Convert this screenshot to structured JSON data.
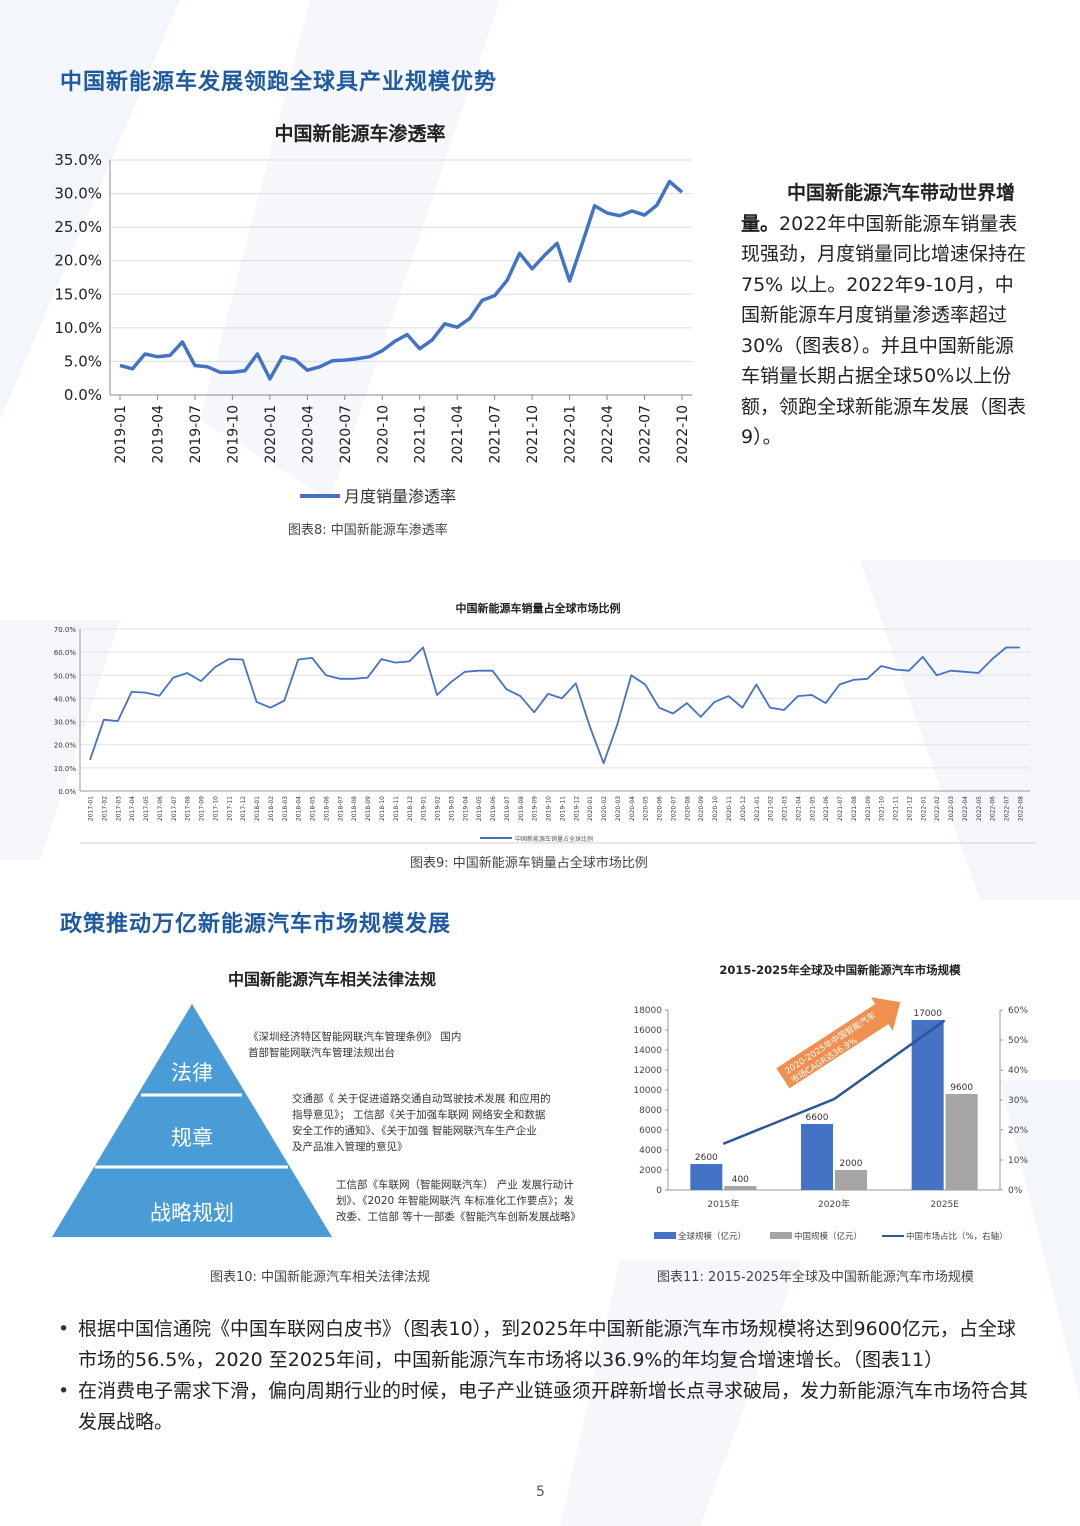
{
  "section1": {
    "title": "中国新能源车发展领跑全球具产业规模优势"
  },
  "chart8": {
    "title": "中国新能源车渗透率",
    "legend": "月度销量渗透率",
    "caption": "图表8:  中国新能源车渗透率",
    "color": "#4472c4"
  },
  "side": {
    "bold": "中国新能源汽车带动世界增量。",
    "text": "2022年中国新能源车销量表现强劲，月度销量同比增速保持在75% 以上。2022年9-10月，中国新能源车月度销量渗透率超过30%（图表8）。并且中国新能源车销量长期占据全球50%以上份额，领跑全球新能源车发展（图表9）。"
  },
  "chart9": {
    "title": "中国新能源车销量占全球市场比例",
    "legend": "中国新能源车销量占全球比例",
    "caption": "图表9:  中国新能源车销量占全球市场比例",
    "color": "#4472c4"
  },
  "section2": {
    "title": "政策推动万亿新能源汽车市场规模发展"
  },
  "pyramid": {
    "title": "中国新能源汽车相关法律法规",
    "levels": [
      "法律",
      "规章",
      "战略规划"
    ],
    "notes": [
      [
        "《深圳经济特区智能网联汽车管理条例》 国内",
        "首部智能网联汽车管理法规出台"
      ],
      [
        "交通部《 关于促进道路交通自动驾驶技术发展 和应用的",
        "指导意见》； 工信部《关于加强车联网 网络安全和数据",
        "安全工作的通知》、《关于加强 智能网联汽车生产企业",
        "及产品准入管理的意见》"
      ],
      [
        "工信部《车联网（智能网联汽车） 产业 发展行动计",
        "划》、《2020 年智能网联汽 车标准化工作要点》；发",
        "改委、工信部 等十一部委《智能汽车创新发展战略》"
      ]
    ],
    "caption": "图表10:  中国新能源汽车相关法律法规",
    "color": "#4a9cd6"
  },
  "chart11": {
    "title": "2015-2025年全球及中国新能源汽车市场规模",
    "annotation": [
      "2020-2025年中国智能汽车",
      "市场CAGR达36.9%"
    ],
    "legend": [
      "全球规模（亿元）",
      "中国规模（亿元）",
      "中国市场占比（%，右轴）"
    ],
    "caption": "图表11:  2015-2025年全球及中国新能源汽车市场规模",
    "colors": {
      "global": "#4472c4",
      "china": "#a5a5a5",
      "line": "#2f5597",
      "arrow": "#ed7d31"
    }
  },
  "bullets": [
    "根据中国信通院《中国车联网白皮书》（图表10），到2025年中国新能源汽车市场规模将达到9600亿元，占全球市场的56.5%，2020  至2025年间，中国新能源汽车市场将以36.9%的年均复合增速增长。（图表11）",
    "在消费电子需求下滑，偏向周期行业的时候，电子产业链亟须开辟新增长点寻求破局，发力新能源汽车市场符合其发展战略。"
  ],
  "page_number": "5",
  "chart_data": [
    {
      "type": "line",
      "title": "中国新能源车渗透率",
      "x_tick_labels": [
        "2019-01",
        "2019-04",
        "2019-07",
        "2019-10",
        "2020-01",
        "2020-04",
        "2020-07",
        "2020-10",
        "2021-01",
        "2021-04",
        "2021-07",
        "2021-10",
        "2022-01",
        "2022-04",
        "2022-07",
        "2022-10"
      ],
      "y_tick_labels": [
        "0.0%",
        "5.0%",
        "10.0%",
        "15.0%",
        "20.0%",
        "25.0%",
        "30.0%",
        "35.0%"
      ],
      "ylim": [
        0,
        35
      ],
      "series": [
        {
          "name": "月度销量渗透率",
          "values": [
            4.4,
            3.9,
            6.1,
            5.7,
            5.9,
            7.9,
            4.4,
            4.2,
            3.4,
            3.4,
            3.6,
            6.1,
            2.4,
            5.7,
            5.3,
            3.7,
            4.2,
            5.1,
            5.2,
            5.4,
            5.7,
            6.6,
            8.0,
            9.0,
            6.9,
            8.2,
            10.6,
            10.1,
            11.4,
            14.1,
            14.8,
            17.1,
            21.1,
            18.8,
            20.8,
            22.6,
            17.0,
            22.5,
            28.2,
            27.1,
            26.7,
            27.4,
            26.8,
            28.3,
            31.8,
            30.2
          ]
        }
      ]
    },
    {
      "type": "line",
      "title": "中国新能源车销量占全球市场比例",
      "x_tick_labels": [
        "2017-01",
        "2017-02",
        "2017-03",
        "2017-04",
        "2017-05",
        "2017-06",
        "2017-07",
        "2017-08",
        "2017-09",
        "2017-10",
        "2017-11",
        "2017-12",
        "2018-01",
        "2018-02",
        "2018-03",
        "2018-04",
        "2018-05",
        "2018-06",
        "2018-07",
        "2018-08",
        "2018-09",
        "2018-10",
        "2018-11",
        "2018-12",
        "2019-01",
        "2019-02",
        "2019-03",
        "2019-04",
        "2019-05",
        "2019-06",
        "2019-07",
        "2019-08",
        "2019-09",
        "2019-10",
        "2019-11",
        "2019-12",
        "2020-01",
        "2020-02",
        "2020-03",
        "2020-04",
        "2020-05",
        "2020-06",
        "2020-07",
        "2020-08",
        "2020-09",
        "2020-10",
        "2020-11",
        "2020-12",
        "2021-01",
        "2021-02",
        "2021-03",
        "2021-04",
        "2021-05",
        "2021-06",
        "2021-07",
        "2021-08",
        "2021-09",
        "2021-10",
        "2021-11",
        "2021-12",
        "2022-01",
        "2022-02",
        "2022-03",
        "2022-04",
        "2022-05",
        "2022-06",
        "2022-07",
        "2022-08"
      ],
      "y_tick_labels": [
        "0.0%",
        "10.0%",
        "20.0%",
        "30.0%",
        "40.0%",
        "50.0%",
        "60.0%",
        "70.0%"
      ],
      "ylim": [
        0,
        70
      ],
      "series": [
        {
          "name": "中国新能源车销量占全球比例",
          "values": [
            13.5,
            30.8,
            30.2,
            42.8,
            42.5,
            41.2,
            49,
            51,
            47.5,
            53.5,
            57,
            56.8,
            38.5,
            36,
            39,
            56.8,
            57.5,
            50,
            48.5,
            48.5,
            49,
            57,
            55.5,
            56,
            62,
            41.5,
            47,
            51.5,
            52,
            52,
            44,
            41,
            34,
            42,
            40,
            46.5,
            28,
            12,
            29,
            50,
            46,
            36,
            33.5,
            38,
            32,
            38.5,
            41,
            36,
            46,
            36,
            35,
            41,
            41.5,
            38,
            46,
            48,
            48.5,
            54,
            52.5,
            52,
            58,
            50,
            52,
            51.5,
            51,
            57,
            62,
            62
          ]
        }
      ]
    },
    {
      "type": "bar",
      "title": "2015-2025年全球及中国新能源汽车市场规模",
      "categories": [
        "2015年",
        "2020年",
        "2025E"
      ],
      "y_tick_labels": [
        "0",
        "2000",
        "4000",
        "6000",
        "8000",
        "10000",
        "12000",
        "14000",
        "16000",
        "18000"
      ],
      "y2_tick_labels": [
        "0%",
        "10%",
        "20%",
        "30%",
        "40%",
        "50%",
        "60%"
      ],
      "ylim": [
        0,
        18000
      ],
      "y2lim": [
        0,
        60
      ],
      "series": [
        {
          "name": "全球规模（亿元）",
          "values": [
            2600,
            6600,
            17000
          ]
        },
        {
          "name": "中国规模（亿元）",
          "values": [
            400,
            2000,
            9600
          ]
        },
        {
          "name": "中国市场占比（%，右轴）",
          "type": "line",
          "values": [
            15.4,
            30.3,
            56.5
          ]
        }
      ]
    }
  ]
}
